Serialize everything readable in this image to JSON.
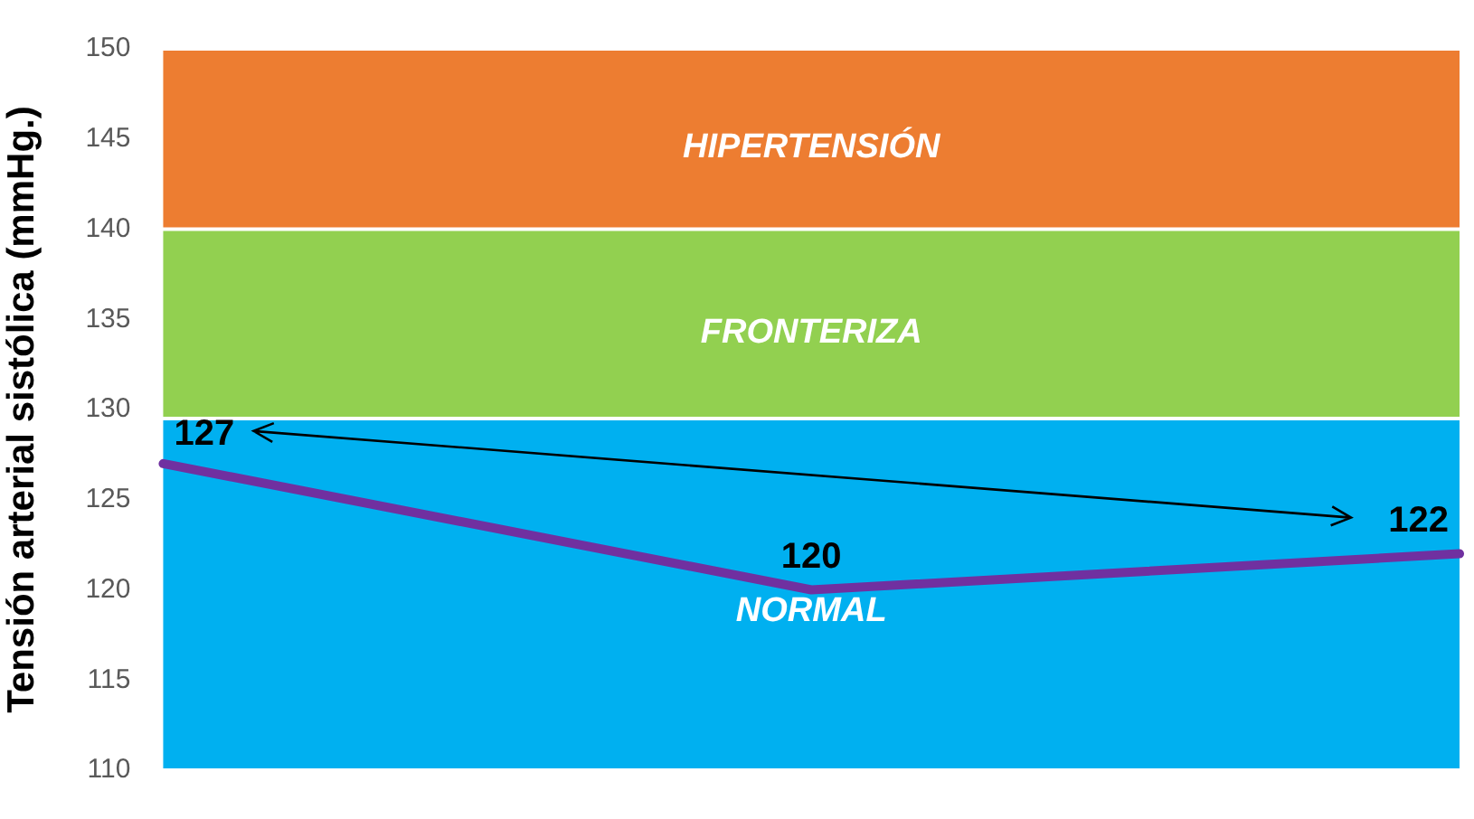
{
  "chart_data": {
    "type": "line",
    "ylabel": "Tensión arterial sistólica (mmHg.)",
    "categories": [
      null,
      null,
      null
    ],
    "series": [
      {
        "color": "#7030a0",
        "values": [
          127,
          120,
          122
        ]
      }
    ],
    "data_labels": true,
    "ylim": [
      110,
      150
    ],
    "yticks": [
      110,
      115,
      120,
      125,
      130,
      135,
      140,
      145,
      150
    ],
    "grid": false,
    "legend": false,
    "marker": "none",
    "line_style": "solid",
    "bands": [
      {
        "axis": "y",
        "from": 110,
        "to": 129.5,
        "label": "NORMAL",
        "color": "#00b0f0"
      },
      {
        "axis": "y",
        "from": 129.5,
        "to": 140,
        "label": "FRONTERIZA",
        "color": "#92d050"
      },
      {
        "axis": "y",
        "from": 140,
        "to": 150,
        "label": "HIPERTENSIÓN",
        "color": "#ed7d31"
      }
    ]
  }
}
